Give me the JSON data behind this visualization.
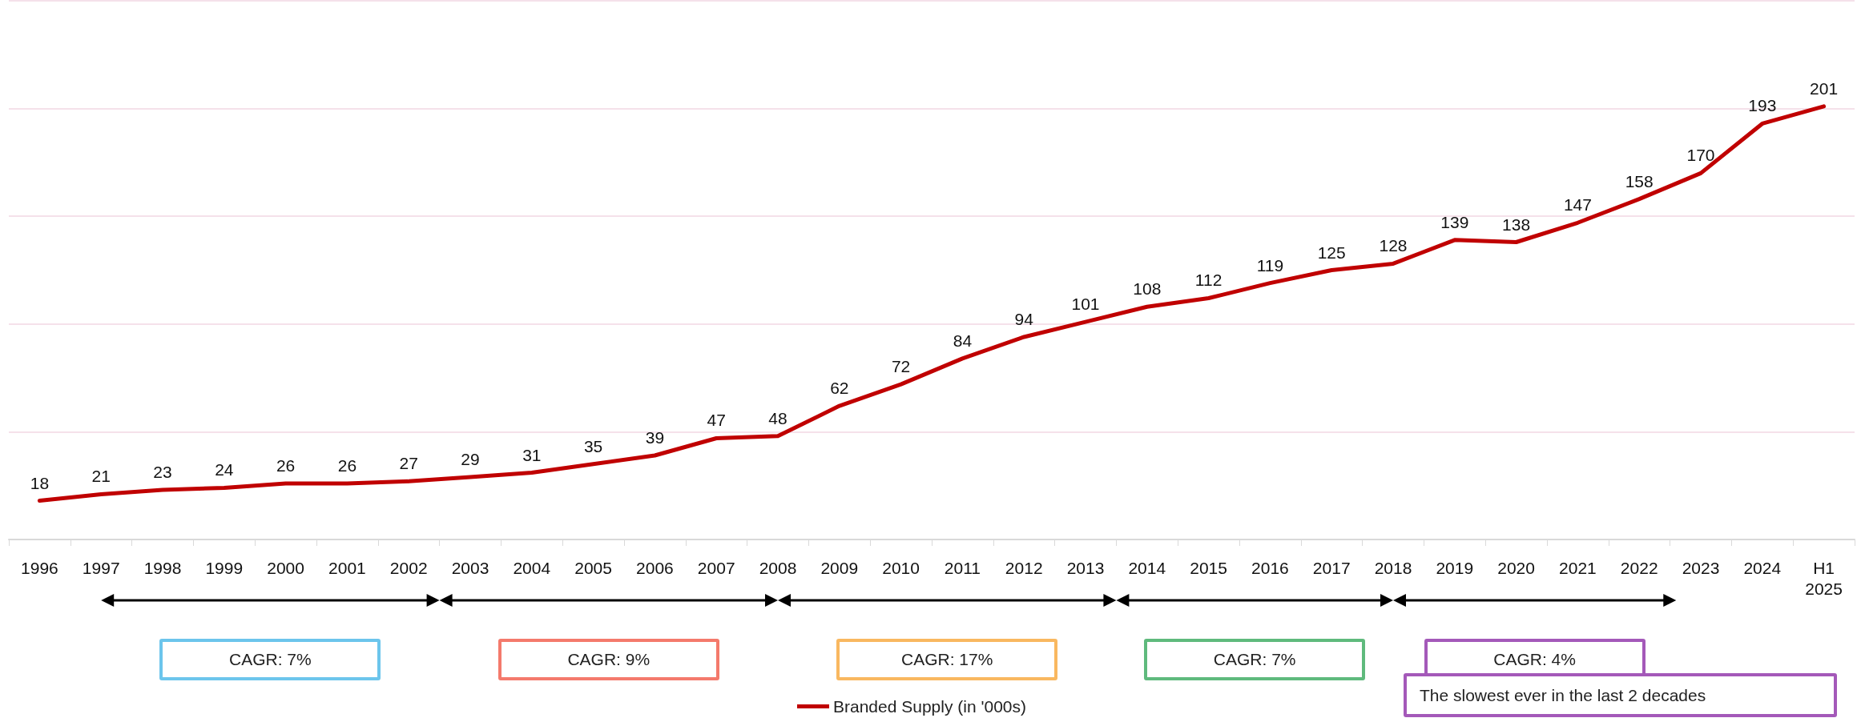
{
  "chart_data": {
    "type": "line",
    "categories": [
      "1996",
      "1997",
      "1998",
      "1999",
      "2000",
      "2001",
      "2002",
      "2003",
      "2004",
      "2005",
      "2006",
      "2007",
      "2008",
      "2009",
      "2010",
      "2011",
      "2012",
      "2013",
      "2014",
      "2015",
      "2016",
      "2017",
      "2018",
      "2019",
      "2020",
      "2021",
      "2022",
      "2023",
      "2024",
      "H1\n2025"
    ],
    "series": [
      {
        "name": "Branded Supply (in '000s)",
        "color": "#c00000",
        "values": [
          18,
          21,
          23,
          24,
          26,
          26,
          27,
          29,
          31,
          35,
          39,
          47,
          48,
          62,
          72,
          84,
          94,
          101,
          108,
          112,
          119,
          125,
          128,
          139,
          138,
          147,
          158,
          170,
          193,
          201
        ]
      }
    ],
    "ylim": [
      0,
      250
    ],
    "yticks": [
      {
        "value": 0,
        "label": null
      },
      {
        "value": 50,
        "label": null
      },
      {
        "value": 100,
        "label": null
      },
      {
        "value": 150,
        "label": null
      },
      {
        "value": 200,
        "label": null
      },
      {
        "value": 250,
        "label": null
      }
    ],
    "tick_labels": "x",
    "grid": "y",
    "legend": "bottom",
    "data_labels": true,
    "marker": "none",
    "line_style": "solid",
    "annotations": [
      "CAGR: 7%",
      "CAGR: 9%",
      "CAGR: 17%",
      "CAGR: 7%",
      "CAGR: 4%",
      "The slowest ever in the last 2 decades"
    ]
  }
}
